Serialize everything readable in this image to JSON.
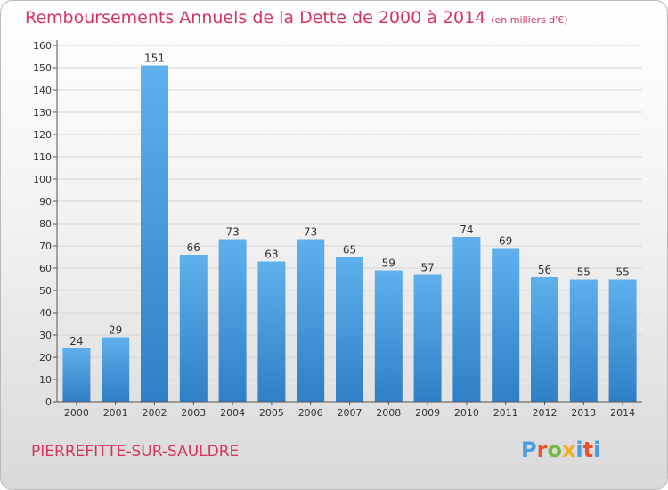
{
  "colors": {
    "title": "#d8345f",
    "bar_light": "#5fb0ec",
    "bar_dark": "#2f7fc6",
    "axis": "#555555",
    "grid": "#d6d6d6",
    "logo": [
      "#4a9ee0",
      "#e4572e",
      "#74b943",
      "#f2b01e",
      "#4a9ee0",
      "#e4572e"
    ]
  },
  "chart_data": {
    "type": "bar",
    "title": "Remboursements Annuels de la Dette de 2000 à 2014",
    "subtitle": "(en milliers d'€)",
    "categories": [
      "2000",
      "2001",
      "2002",
      "2003",
      "2004",
      "2005",
      "2006",
      "2007",
      "2008",
      "2009",
      "2010",
      "2011",
      "2012",
      "2013",
      "2014"
    ],
    "values": [
      24,
      29,
      151,
      66,
      73,
      63,
      73,
      65,
      59,
      57,
      74,
      69,
      56,
      55,
      55
    ],
    "ylim": [
      0,
      160
    ],
    "yticks": [
      0,
      10,
      20,
      30,
      40,
      50,
      60,
      70,
      80,
      90,
      100,
      110,
      120,
      130,
      140,
      150,
      160
    ],
    "grid": true,
    "xlabel": "",
    "ylabel": ""
  },
  "footer": {
    "city": "PIERREFITTE-SUR-SAULDRE",
    "logo_letters": [
      "P",
      "r",
      "o",
      "x",
      "i",
      "t",
      "i"
    ]
  }
}
